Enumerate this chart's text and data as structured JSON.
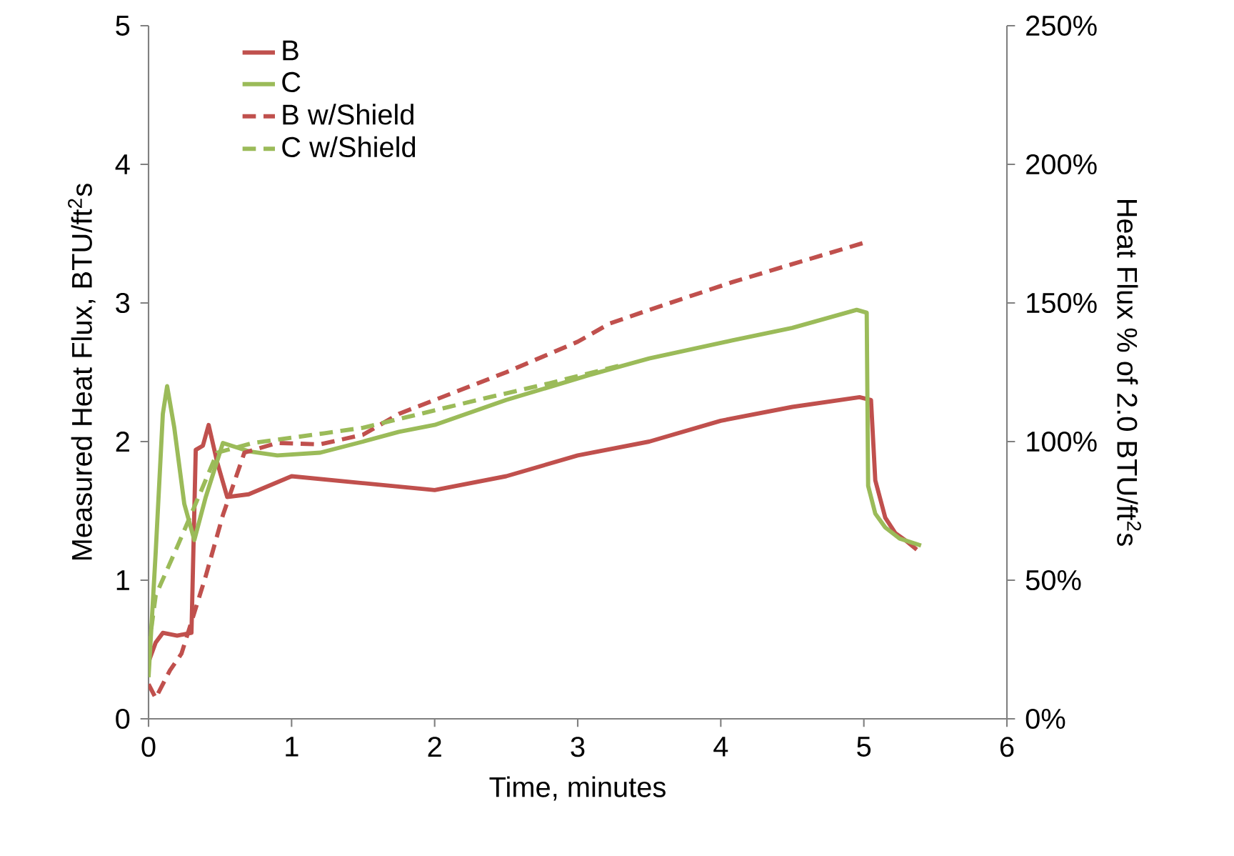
{
  "chart_data": {
    "type": "line",
    "xlabel": "Time, minutes",
    "ylabel": "Measured Heat Flux, BTU/ft$^{2}$s",
    "y2label": "Heat Flux % of 2.0 BTU/ft$^{2}$s",
    "xlim": [
      0,
      6
    ],
    "ylim": [
      0,
      5
    ],
    "xticks": [
      0,
      1,
      2,
      3,
      4,
      5,
      6
    ],
    "yticks": [
      0,
      1,
      2,
      3,
      4,
      5
    ],
    "y2lim": [
      0,
      250
    ],
    "y2ticks": [
      {
        "value": 0,
        "label": "0%"
      },
      {
        "value": 50,
        "label": "50%"
      },
      {
        "value": 100,
        "label": "100%"
      },
      {
        "value": 150,
        "label": "150%"
      },
      {
        "value": 200,
        "label": "200%"
      },
      {
        "value": 250,
        "label": "250%"
      }
    ],
    "grid": false,
    "legend": "top left",
    "marker": "none",
    "series": [
      {
        "name": "B",
        "color": "#c0504d",
        "line_style": "solid",
        "x": [
          0,
          0.05,
          0.1,
          0.2,
          0.3,
          0.33,
          0.38,
          0.42,
          0.48,
          0.55,
          0.7,
          1.0,
          1.5,
          2.0,
          2.5,
          3.0,
          3.5,
          4.0,
          4.5,
          4.97,
          5.05,
          5.08,
          5.15,
          5.22,
          5.3,
          5.37
        ],
        "values": [
          0.41,
          0.55,
          0.62,
          0.6,
          0.62,
          1.94,
          1.97,
          2.12,
          1.85,
          1.6,
          1.62,
          1.75,
          1.7,
          1.65,
          1.75,
          1.9,
          2.0,
          2.15,
          2.25,
          2.32,
          2.3,
          1.72,
          1.45,
          1.34,
          1.28,
          1.22
        ]
      },
      {
        "name": "C",
        "color": "#9bbb59",
        "line_style": "solid",
        "x": [
          0,
          0.05,
          0.1,
          0.13,
          0.18,
          0.25,
          0.32,
          0.4,
          0.52,
          0.7,
          0.9,
          1.2,
          1.5,
          1.75,
          2.0,
          2.5,
          3.08,
          3.5,
          4.08,
          4.5,
          4.95,
          5.02,
          5.03,
          5.08,
          5.15,
          5.25,
          5.4
        ],
        "values": [
          0.3,
          1.2,
          2.2,
          2.4,
          2.1,
          1.55,
          1.29,
          1.6,
          1.99,
          1.93,
          1.9,
          1.92,
          2.0,
          2.07,
          2.12,
          2.3,
          2.48,
          2.6,
          2.73,
          2.82,
          2.95,
          2.93,
          1.68,
          1.48,
          1.38,
          1.3,
          1.25
        ]
      },
      {
        "name": "B w/Shield",
        "color": "#c0504d",
        "line_style": "dashed",
        "x": [
          0,
          0.05,
          0.15,
          0.23,
          0.3,
          0.4,
          0.52,
          0.67,
          0.9,
          1.2,
          1.5,
          1.75,
          2.0,
          2.5,
          3.0,
          3.22,
          3.5,
          4.08,
          4.5,
          5.02
        ],
        "values": [
          0.25,
          0.15,
          0.35,
          0.47,
          0.7,
          1.03,
          1.47,
          1.92,
          1.99,
          1.98,
          2.05,
          2.2,
          2.3,
          2.5,
          2.72,
          2.85,
          2.95,
          3.15,
          3.28,
          3.44
        ]
      },
      {
        "name": "C w/Shield",
        "color": "#9bbb59",
        "line_style": "dashed",
        "x": [
          0,
          0.05,
          0.2,
          0.37,
          0.48,
          0.73,
          1.23,
          1.5,
          1.9,
          2.3,
          2.8,
          3.3
        ],
        "values": [
          0.5,
          0.89,
          1.24,
          1.65,
          1.92,
          1.99,
          2.06,
          2.1,
          2.2,
          2.3,
          2.42,
          2.55
        ]
      }
    ]
  }
}
